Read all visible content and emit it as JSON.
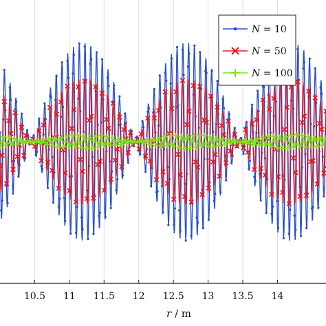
{
  "chart_data": {
    "type": "line",
    "title": "",
    "xlabel_var": "r",
    "xlabel_unit": " / m",
    "ylabel": "",
    "xlim": [
      10.0,
      14.7
    ],
    "ylim": [
      -1.0,
      1.0
    ],
    "x_ticks": [
      10.5,
      11,
      11.5,
      12,
      12.5,
      13,
      13.5,
      14
    ],
    "x_tick_labels": [
      "10.5",
      "11",
      "11.5",
      "12",
      "12.5",
      "13",
      "13.5",
      "14"
    ],
    "grid": true,
    "legend_position": "top-right",
    "series": [
      {
        "name_var": "N",
        "name_value": "= 10",
        "color": "#2a4fc9",
        "marker": "dot",
        "envelope_amplitude": 0.7,
        "beat_period_m": 1.5,
        "beat_center_m": 11.2,
        "carrier_period_m": 0.083
      },
      {
        "name_var": "N",
        "name_value": "= 50",
        "color": "#e8161b",
        "marker": "x",
        "envelope_amplitude": 0.45,
        "beat_period_m": 1.5,
        "beat_center_m": 11.2,
        "carrier_period_m": 0.083
      },
      {
        "name_var": "N",
        "name_value": "= 100",
        "color": "#7ee21c",
        "marker": "plus",
        "envelope_amplitude": 0.05,
        "beat_period_m": 1.5,
        "beat_center_m": 11.2,
        "carrier_period_m": 0.083
      }
    ]
  }
}
